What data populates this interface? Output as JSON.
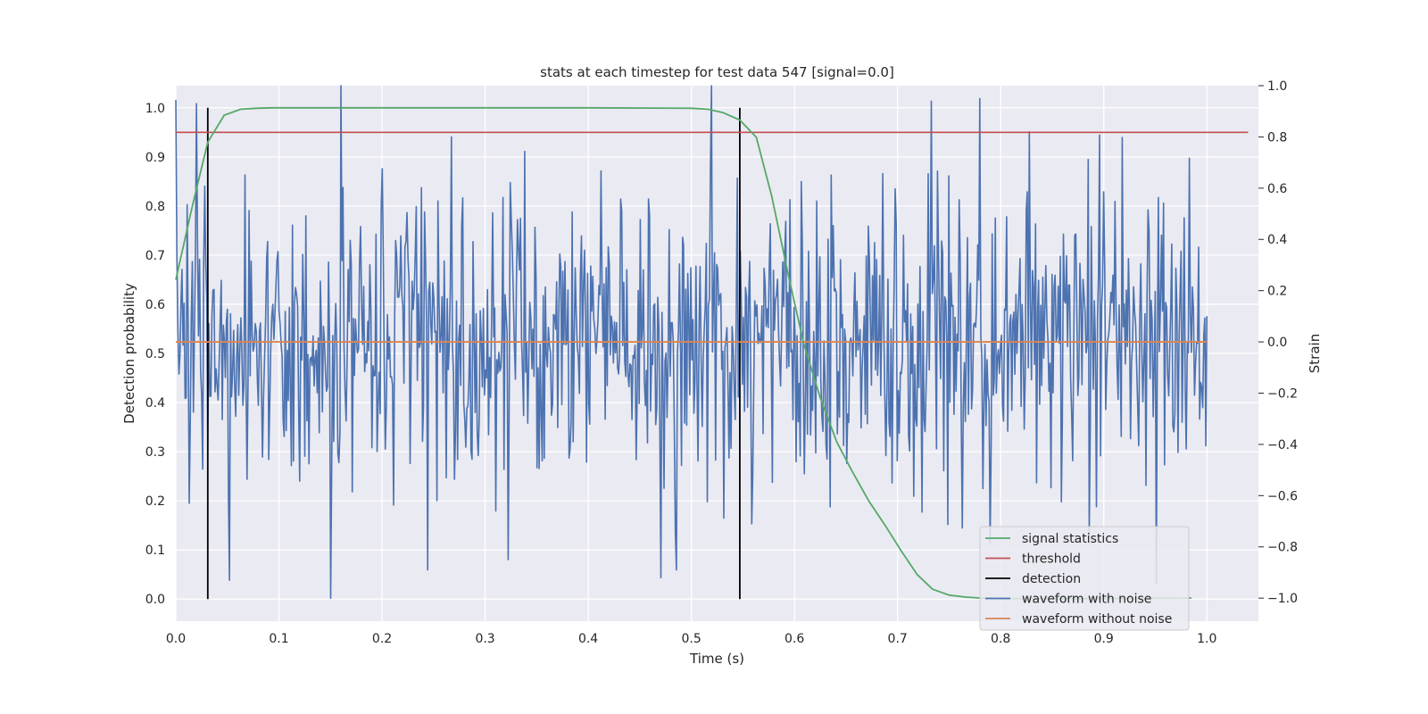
{
  "chart_data": {
    "type": "line",
    "title": "stats at each timestep for test data 547 [signal=0.0]",
    "xlabel": "Time (s)",
    "ylabel_left": "Detection probability",
    "ylabel_right": "Strain",
    "xlim": [
      0.0,
      1.05
    ],
    "ylim_left": [
      -0.045,
      1.045
    ],
    "ylim_right": [
      -1.09,
      1.0
    ],
    "x_ticks": [
      0.0,
      0.1,
      0.2,
      0.3,
      0.4,
      0.5,
      0.6,
      0.7,
      0.8,
      0.9,
      1.0
    ],
    "x_tick_labels": [
      "0.0",
      "0.1",
      "0.2",
      "0.3",
      "0.4",
      "0.5",
      "0.6",
      "0.7",
      "0.8",
      "0.9",
      "1.0"
    ],
    "y_left_ticks": [
      0.0,
      0.1,
      0.2,
      0.3,
      0.4,
      0.5,
      0.6,
      0.7,
      0.8,
      0.9,
      1.0
    ],
    "y_left_tick_labels": [
      "0.0",
      "0.1",
      "0.2",
      "0.3",
      "0.4",
      "0.5",
      "0.6",
      "0.7",
      "0.8",
      "0.9",
      "1.0"
    ],
    "y_right_ticks": [
      -1.0,
      -0.8,
      -0.6,
      -0.4,
      -0.2,
      0.0,
      0.2,
      0.4,
      0.6,
      0.8,
      1.0
    ],
    "y_right_tick_labels": [
      "−1.0",
      "−0.8",
      "−0.6",
      "−0.4",
      "−0.2",
      "0.0",
      "0.2",
      "0.4",
      "0.6",
      "0.8",
      "1.0"
    ],
    "grid": true,
    "legend_position": "lower right",
    "colors": {
      "signal_statistics": "#55a868",
      "threshold": "#c44e52",
      "detection": "#000000",
      "waveform_with_noise": "#4c72b0",
      "waveform_without_noise": "#dd8452",
      "background": "#eaeaf2",
      "grid": "#ffffff"
    },
    "series": [
      {
        "name": "signal statistics",
        "axis": "left",
        "x": [
          0.0,
          0.016,
          0.031,
          0.047,
          0.063,
          0.078,
          0.094,
          0.2,
          0.3,
          0.4,
          0.5,
          0.516,
          0.531,
          0.547,
          0.563,
          0.578,
          0.594,
          0.609,
          0.625,
          0.641,
          0.656,
          0.672,
          0.688,
          0.703,
          0.719,
          0.734,
          0.75,
          0.766,
          0.781,
          0.8,
          0.9,
          0.985
        ],
        "y": [
          0.65,
          0.8,
          0.93,
          0.985,
          0.997,
          0.999,
          1.0,
          1.0,
          1.0,
          1.0,
          0.999,
          0.997,
          0.99,
          0.975,
          0.94,
          0.82,
          0.66,
          0.52,
          0.41,
          0.32,
          0.26,
          0.2,
          0.15,
          0.1,
          0.05,
          0.02,
          0.008,
          0.004,
          0.002,
          0.001,
          0.001,
          0.002
        ]
      },
      {
        "name": "threshold",
        "axis": "left",
        "x": [
          0.0,
          1.04
        ],
        "y": [
          0.95,
          0.95
        ]
      },
      {
        "name": "detection",
        "axis": "left",
        "x": [
          0.031,
          0.547
        ],
        "y_range": [
          0.0,
          1.0
        ]
      },
      {
        "name": "waveform with noise",
        "axis": "right",
        "x_start": 0.0,
        "x_end": 1.0,
        "samples": 1000,
        "y_range": [
          -1.0,
          1.0
        ],
        "peaks": [
          {
            "x": 0.02,
            "y": 0.93
          },
          {
            "x": 0.16,
            "y": 1.0
          },
          {
            "x": 0.267,
            "y": 0.8
          },
          {
            "x": 0.52,
            "y": 1.0
          },
          {
            "x": 0.78,
            "y": 0.95
          },
          {
            "x": 0.828,
            "y": 0.82
          }
        ],
        "troughs": [
          {
            "x": 0.013,
            "y": -0.63
          },
          {
            "x": 0.052,
            "y": -0.93
          },
          {
            "x": 0.15,
            "y": -1.0
          },
          {
            "x": 0.244,
            "y": -0.89
          },
          {
            "x": 0.322,
            "y": -0.85
          },
          {
            "x": 0.47,
            "y": -0.92
          },
          {
            "x": 0.485,
            "y": -0.89
          },
          {
            "x": 0.559,
            "y": -0.71
          }
        ]
      },
      {
        "name": "waveform without noise",
        "axis": "right",
        "x": [
          0.0,
          1.0
        ],
        "y": [
          0.0,
          0.0
        ]
      }
    ],
    "legend": [
      {
        "label": "signal statistics",
        "color": "#55a868"
      },
      {
        "label": "threshold",
        "color": "#c44e52"
      },
      {
        "label": "detection",
        "color": "#000000"
      },
      {
        "label": "waveform with noise",
        "color": "#4c72b0"
      },
      {
        "label": "waveform without noise",
        "color": "#dd8452"
      }
    ]
  }
}
